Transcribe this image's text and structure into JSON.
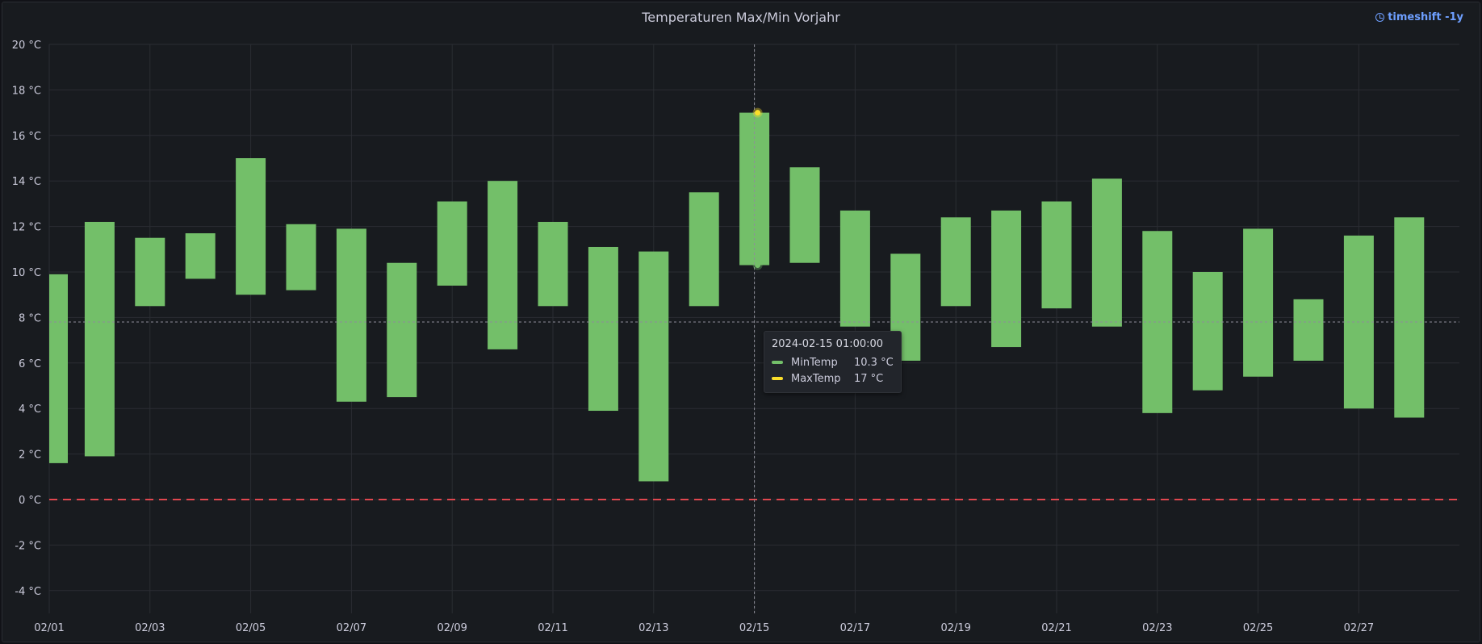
{
  "panel": {
    "title": "Temperaturen Max/Min Vorjahr",
    "timeshift_label": "timeshift -1y",
    "timeshift_icon": "clock-icon"
  },
  "tooltip": {
    "time": "2024-02-15 01:00:00",
    "rows": [
      {
        "label": "MinTemp",
        "value": "10.3 °C",
        "color": "#73bf69"
      },
      {
        "label": "MaxTemp",
        "value": "17 °C",
        "color": "#fade2a"
      }
    ]
  },
  "chart_data": {
    "type": "bar",
    "title": "Temperaturen Max/Min Vorjahr",
    "xlabel": "",
    "ylabel": "",
    "unit": "°C",
    "ylim": [
      -5,
      20
    ],
    "yticks": [
      -4,
      -2,
      0,
      2,
      4,
      6,
      8,
      10,
      12,
      14,
      16,
      18,
      20
    ],
    "ytick_labels": [
      "-4 °C",
      "-2 °C",
      "0 °C",
      "2 °C",
      "4 °C",
      "6 °C",
      "8 °C",
      "10 °C",
      "12 °C",
      "14 °C",
      "16 °C",
      "18 °C",
      "20 °C"
    ],
    "xtick_labels": [
      "02/01",
      "02/03",
      "02/05",
      "02/07",
      "02/09",
      "02/11",
      "02/13",
      "02/15",
      "02/17",
      "02/19",
      "02/21",
      "02/23",
      "02/25",
      "02/27"
    ],
    "categories": [
      "2024-02-01",
      "2024-02-02",
      "2024-02-03",
      "2024-02-04",
      "2024-02-05",
      "2024-02-06",
      "2024-02-07",
      "2024-02-08",
      "2024-02-09",
      "2024-02-10",
      "2024-02-11",
      "2024-02-12",
      "2024-02-13",
      "2024-02-14",
      "2024-02-15",
      "2024-02-16",
      "2024-02-17",
      "2024-02-18",
      "2024-02-19",
      "2024-02-20",
      "2024-02-21",
      "2024-02-22",
      "2024-02-23",
      "2024-02-24",
      "2024-02-25",
      "2024-02-26",
      "2024-02-27",
      "2024-02-28"
    ],
    "series": [
      {
        "name": "MinTemp",
        "color": "#73bf69",
        "values": [
          1.6,
          1.9,
          8.5,
          9.7,
          9.0,
          9.2,
          4.3,
          4.5,
          9.4,
          6.6,
          8.5,
          3.9,
          0.8,
          8.5,
          10.3,
          10.4,
          7.6,
          6.1,
          8.5,
          6.7,
          8.4,
          7.6,
          3.8,
          4.8,
          5.4,
          6.1,
          4.0,
          3.6
        ]
      },
      {
        "name": "MaxTemp",
        "color": "#fade2a",
        "values": [
          9.9,
          12.2,
          11.5,
          11.7,
          15.0,
          12.1,
          11.9,
          10.4,
          13.1,
          14.0,
          12.2,
          11.1,
          10.9,
          13.5,
          17.0,
          14.6,
          12.7,
          10.8,
          12.4,
          12.7,
          13.1,
          14.1,
          11.8,
          10.0,
          11.9,
          8.8,
          11.6,
          12.4
        ]
      }
    ],
    "threshold": {
      "value": 0,
      "color": "#e0474f",
      "style": "dashed"
    },
    "bar_color": "#73bf69",
    "hover": {
      "date": "2024-02-15",
      "crosshair_value": 7.8
    }
  }
}
